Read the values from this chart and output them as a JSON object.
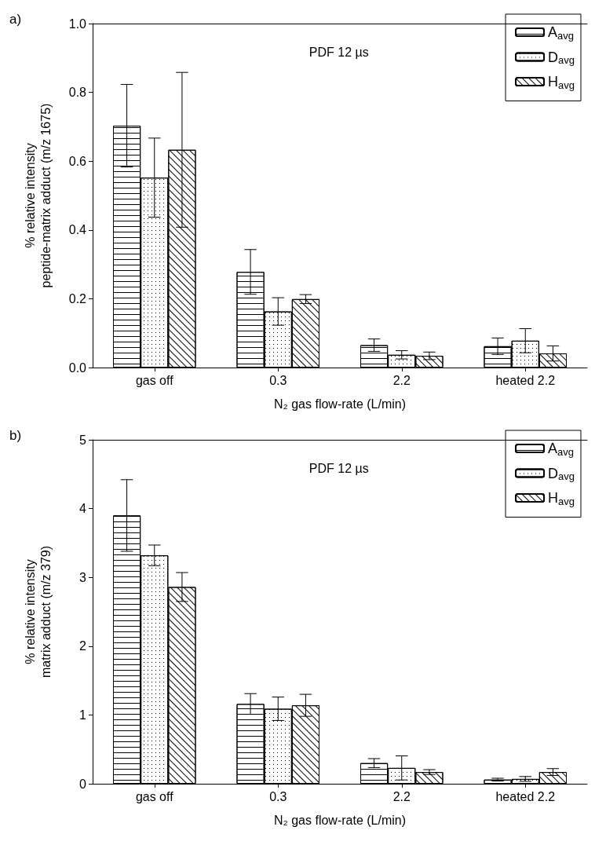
{
  "chart_data": [
    {
      "type": "bar",
      "xlabel": "N₂ gas flow-rate (L/min)",
      "ylabel": "% relative intensity\npeptide-matrix adduct (m/z 1675)",
      "annotations": [
        "a)",
        "PDF 12 µs"
      ],
      "categories": [
        "gas off",
        "0.3",
        "2.2",
        "heated 2.2"
      ],
      "series": [
        {
          "name": "A$_{avg}$",
          "color": "#000000",
          "values": [
            0.703,
            0.278,
            0.065,
            0.062
          ],
          "errors": [
            0.12,
            0.065,
            0.018,
            0.024
          ]
        },
        {
          "name": "D$_{avg}$",
          "color": "#000000",
          "values": [
            0.552,
            0.163,
            0.037,
            0.078
          ],
          "errors": [
            0.115,
            0.04,
            0.012,
            0.035
          ]
        },
        {
          "name": "H$_{avg}$",
          "color": "#000000",
          "values": [
            0.633,
            0.199,
            0.034,
            0.041
          ],
          "errors": [
            0.225,
            0.013,
            0.011,
            0.022
          ]
        }
      ],
      "ylim": [
        0,
        1
      ],
      "yticks": [
        {
          "value": 0,
          "label": "0.0"
        },
        0.2,
        0.4,
        0.6,
        0.8,
        {
          "value": 1,
          "label": "1.0"
        }
      ],
      "grid": false,
      "legend": "top right"
    },
    {
      "type": "bar",
      "xlabel": "N₂ gas flow-rate (L/min)",
      "ylabel": "% relative intensity\nmatrix adduct (m/z 379)",
      "annotations": [
        "b)",
        "PDF 12 µs"
      ],
      "categories": [
        "gas off",
        "0.3",
        "2.2",
        "heated 2.2"
      ],
      "series": [
        {
          "name": "A$_{avg}$",
          "color": "#000000",
          "values": [
            3.9,
            1.16,
            0.3,
            0.06
          ],
          "errors": [
            0.52,
            0.15,
            0.065,
            0.02
          ]
        },
        {
          "name": "D$_{avg}$",
          "color": "#000000",
          "values": [
            3.32,
            1.09,
            0.23,
            0.07
          ],
          "errors": [
            0.15,
            0.17,
            0.175,
            0.035
          ]
        },
        {
          "name": "H$_{avg}$",
          "color": "#000000",
          "values": [
            2.86,
            1.14,
            0.17,
            0.17
          ],
          "errors": [
            0.21,
            0.16,
            0.035,
            0.05
          ]
        }
      ],
      "ylim": [
        0,
        5
      ],
      "yticks": [
        0,
        1,
        2,
        3,
        4,
        5
      ],
      "grid": false,
      "legend": "top right"
    }
  ]
}
